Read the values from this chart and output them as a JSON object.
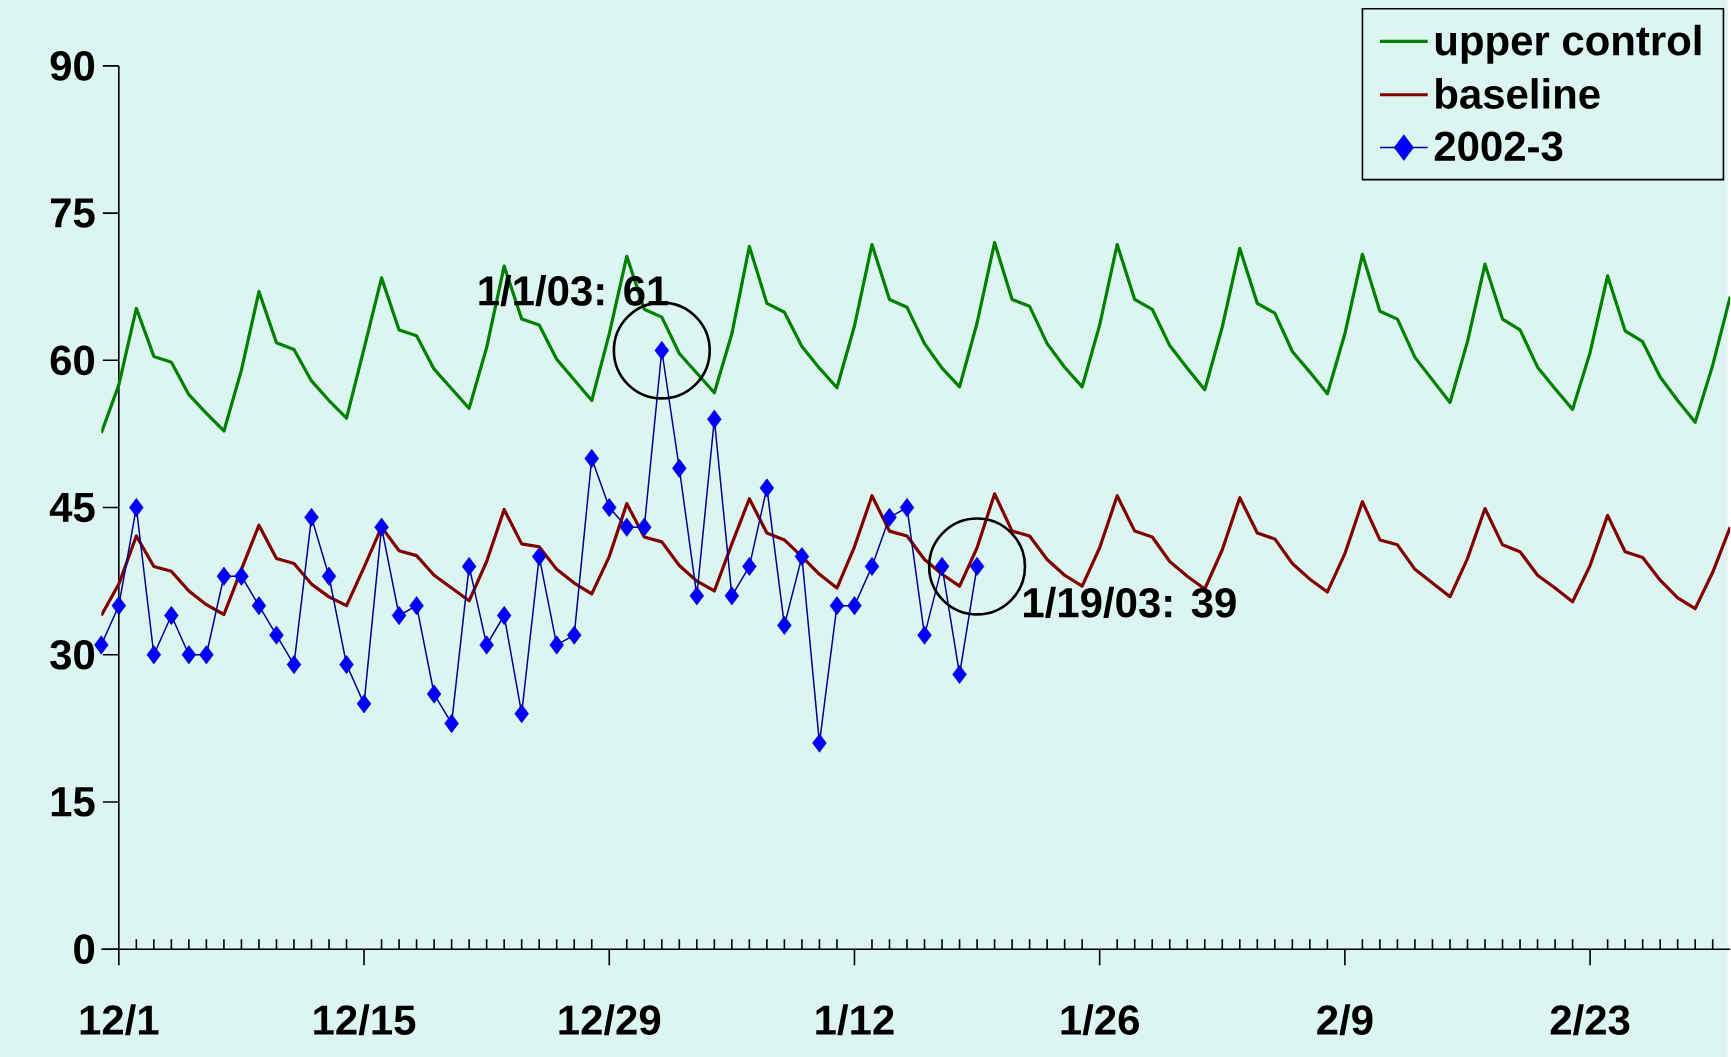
{
  "chart_data": {
    "type": "line",
    "x": [
      "2002-11-30",
      "2002-12-01",
      "2002-12-02",
      "2002-12-03",
      "2002-12-04",
      "2002-12-05",
      "2002-12-06",
      "2002-12-07",
      "2002-12-08",
      "2002-12-09",
      "2002-12-10",
      "2002-12-11",
      "2002-12-12",
      "2002-12-13",
      "2002-12-14",
      "2002-12-15",
      "2002-12-16",
      "2002-12-17",
      "2002-12-18",
      "2002-12-19",
      "2002-12-20",
      "2002-12-21",
      "2002-12-22",
      "2002-12-23",
      "2002-12-24",
      "2002-12-25",
      "2002-12-26",
      "2002-12-27",
      "2002-12-28",
      "2002-12-29",
      "2002-12-30",
      "2002-12-31",
      "2003-01-01",
      "2003-01-02",
      "2003-01-03",
      "2003-01-04",
      "2003-01-05",
      "2003-01-06",
      "2003-01-07",
      "2003-01-08",
      "2003-01-09",
      "2003-01-10",
      "2003-01-11",
      "2003-01-12",
      "2003-01-13",
      "2003-01-14",
      "2003-01-15",
      "2003-01-16",
      "2003-01-17",
      "2003-01-18",
      "2003-01-19",
      "2003-01-20",
      "2003-01-21",
      "2003-01-22",
      "2003-01-23",
      "2003-01-24",
      "2003-01-25",
      "2003-01-26",
      "2003-01-27",
      "2003-01-28",
      "2003-01-29",
      "2003-01-30",
      "2003-01-31",
      "2003-02-01",
      "2003-02-02",
      "2003-02-03",
      "2003-02-04",
      "2003-02-05",
      "2003-02-06",
      "2003-02-07",
      "2003-02-08",
      "2003-02-09",
      "2003-02-10",
      "2003-02-11",
      "2003-02-12",
      "2003-02-13",
      "2003-02-14",
      "2003-02-15",
      "2003-02-16",
      "2003-02-17",
      "2003-02-18",
      "2003-02-19",
      "2003-02-20",
      "2003-02-21",
      "2003-02-22",
      "2003-02-23",
      "2003-02-24",
      "2003-02-25",
      "2003-02-26",
      "2003-02-27",
      "2003-02-28",
      "2003-03-01",
      "2003-03-02",
      "2003-03-03"
    ],
    "series": [
      {
        "name": "upper control",
        "color": "#008000",
        "values": [
          52.6,
          57.5,
          65.3,
          60.4,
          59.8,
          56.5,
          54.6,
          52.8,
          59,
          67,
          61.8,
          61.1,
          57.9,
          55.9,
          54.1,
          61.2,
          68.4,
          63.1,
          62.5,
          59.1,
          57.1,
          55.1,
          61.3,
          69.6,
          64.2,
          63.6,
          60.1,
          58,
          55.9,
          62.7,
          70.6,
          65.2,
          64.4,
          60.7,
          58.7,
          56.7,
          62.7,
          71.6,
          65.8,
          64.9,
          61.4,
          59.2,
          57.2,
          63.5,
          71.8,
          66.2,
          65.4,
          61.7,
          59.2,
          57.3,
          63.8,
          72,
          66.2,
          65.5,
          61.7,
          59.3,
          57.3,
          63.6,
          71.8,
          66.2,
          65.2,
          61.5,
          59.2,
          57,
          63.4,
          71.4,
          65.8,
          64.8,
          60.9,
          58.8,
          56.6,
          62.7,
          70.8,
          65,
          64.2,
          60.3,
          58,
          55.7,
          61.9,
          69.8,
          64.2,
          63.1,
          59.3,
          57.1,
          55,
          60.8,
          68.6,
          63,
          61.9,
          58.3,
          55.9,
          53.7,
          59.5,
          66.5
        ]
      },
      {
        "name": "baseline",
        "color": "#800000",
        "values": [
          34,
          37.2,
          42.1,
          39,
          38.5,
          36.5,
          35.1,
          34.1,
          38.7,
          43.2,
          39.8,
          39.3,
          37.2,
          35.9,
          35,
          38.9,
          43,
          40.6,
          40.1,
          38.1,
          36.8,
          35.5,
          39.5,
          44.8,
          41.3,
          41,
          38.7,
          37.3,
          36.2,
          40,
          45.4,
          42,
          41.5,
          39.1,
          37.5,
          36.5,
          41.3,
          45.9,
          42.4,
          41.7,
          40,
          38.2,
          36.8,
          41,
          46.2,
          42.6,
          42.1,
          39.7,
          38.2,
          37,
          40.9,
          46.4,
          42.6,
          42.1,
          39.7,
          38.1,
          37,
          40.9,
          46.2,
          42.6,
          42,
          39.5,
          38,
          36.7,
          40.7,
          46,
          42.4,
          41.8,
          39.3,
          37.7,
          36.4,
          40.3,
          45.6,
          41.7,
          41.2,
          38.7,
          37.3,
          35.9,
          39.8,
          44.9,
          41.2,
          40.5,
          38.1,
          36.8,
          35.4,
          39.1,
          44.2,
          40.5,
          39.9,
          37.6,
          35.8,
          34.7,
          38.4,
          43
        ]
      },
      {
        "name": "2002-3",
        "color": "#0000ff",
        "marker": "diamond",
        "values": [
          31,
          35,
          45,
          30,
          34,
          30,
          30,
          38,
          38,
          35,
          32,
          29,
          44,
          38,
          29,
          25,
          43,
          34,
          35,
          26,
          23,
          39,
          31,
          34,
          24,
          40,
          31,
          32,
          50,
          45,
          43,
          43,
          61,
          49,
          36,
          54,
          36,
          39,
          47,
          33,
          40,
          21,
          35,
          35,
          39,
          44,
          45,
          32,
          39,
          28,
          39,
          null,
          null,
          null,
          null,
          null,
          null,
          null,
          null,
          null,
          null,
          null,
          null,
          null,
          null,
          null,
          null,
          null,
          null,
          null,
          null,
          null,
          null,
          null,
          null,
          null,
          null,
          null,
          null,
          null,
          null,
          null,
          null,
          null,
          null,
          null,
          null,
          null,
          null,
          null,
          null,
          null,
          null,
          null
        ]
      }
    ],
    "xlim": [
      "2002-11-30",
      "2003-03-03"
    ],
    "ylim": [
      0,
      90
    ],
    "xticks": [
      {
        "value": "2002-12-01",
        "label": "12/1"
      },
      {
        "value": "2002-12-02",
        "label": null
      },
      {
        "value": "2002-12-03",
        "label": null
      },
      {
        "value": "2002-12-04",
        "label": null
      },
      {
        "value": "2002-12-05",
        "label": null
      },
      {
        "value": "2002-12-06",
        "label": null
      },
      {
        "value": "2002-12-07",
        "label": null
      },
      {
        "value": "2002-12-08",
        "label": null
      },
      {
        "value": "2002-12-09",
        "label": null
      },
      {
        "value": "2002-12-10",
        "label": null
      },
      {
        "value": "2002-12-11",
        "label": null
      },
      {
        "value": "2002-12-12",
        "label": null
      },
      {
        "value": "2002-12-13",
        "label": null
      },
      {
        "value": "2002-12-14",
        "label": null
      },
      {
        "value": "2002-12-15",
        "label": "12/15"
      },
      {
        "value": "2002-12-16",
        "label": null
      },
      {
        "value": "2002-12-17",
        "label": null
      },
      {
        "value": "2002-12-18",
        "label": null
      },
      {
        "value": "2002-12-19",
        "label": null
      },
      {
        "value": "2002-12-20",
        "label": null
      },
      {
        "value": "2002-12-21",
        "label": null
      },
      {
        "value": "2002-12-22",
        "label": null
      },
      {
        "value": "2002-12-23",
        "label": null
      },
      {
        "value": "2002-12-24",
        "label": null
      },
      {
        "value": "2002-12-25",
        "label": null
      },
      {
        "value": "2002-12-26",
        "label": null
      },
      {
        "value": "2002-12-27",
        "label": null
      },
      {
        "value": "2002-12-28",
        "label": null
      },
      {
        "value": "2002-12-29",
        "label": "12/29"
      },
      {
        "value": "2002-12-30",
        "label": null
      },
      {
        "value": "2002-12-31",
        "label": null
      },
      {
        "value": "2003-01-01",
        "label": null
      },
      {
        "value": "2003-01-02",
        "label": null
      },
      {
        "value": "2003-01-03",
        "label": null
      },
      {
        "value": "2003-01-04",
        "label": null
      },
      {
        "value": "2003-01-05",
        "label": null
      },
      {
        "value": "2003-01-06",
        "label": null
      },
      {
        "value": "2003-01-07",
        "label": null
      },
      {
        "value": "2003-01-08",
        "label": null
      },
      {
        "value": "2003-01-09",
        "label": null
      },
      {
        "value": "2003-01-10",
        "label": null
      },
      {
        "value": "2003-01-11",
        "label": null
      },
      {
        "value": "2003-01-12",
        "label": "1/12"
      },
      {
        "value": "2003-01-13",
        "label": null
      },
      {
        "value": "2003-01-14",
        "label": null
      },
      {
        "value": "2003-01-15",
        "label": null
      },
      {
        "value": "2003-01-16",
        "label": null
      },
      {
        "value": "2003-01-17",
        "label": null
      },
      {
        "value": "2003-01-18",
        "label": null
      },
      {
        "value": "2003-01-19",
        "label": null
      },
      {
        "value": "2003-01-20",
        "label": null
      },
      {
        "value": "2003-01-21",
        "label": null
      },
      {
        "value": "2003-01-22",
        "label": null
      },
      {
        "value": "2003-01-23",
        "label": null
      },
      {
        "value": "2003-01-24",
        "label": null
      },
      {
        "value": "2003-01-25",
        "label": null
      },
      {
        "value": "2003-01-26",
        "label": "1/26"
      },
      {
        "value": "2003-01-27",
        "label": null
      },
      {
        "value": "2003-01-28",
        "label": null
      },
      {
        "value": "2003-01-29",
        "label": null
      },
      {
        "value": "2003-01-30",
        "label": null
      },
      {
        "value": "2003-01-31",
        "label": null
      },
      {
        "value": "2003-02-01",
        "label": null
      },
      {
        "value": "2003-02-02",
        "label": null
      },
      {
        "value": "2003-02-03",
        "label": null
      },
      {
        "value": "2003-02-04",
        "label": null
      },
      {
        "value": "2003-02-05",
        "label": null
      },
      {
        "value": "2003-02-06",
        "label": null
      },
      {
        "value": "2003-02-07",
        "label": null
      },
      {
        "value": "2003-02-08",
        "label": null
      },
      {
        "value": "2003-02-09",
        "label": "2/9"
      },
      {
        "value": "2003-02-10",
        "label": null
      },
      {
        "value": "2003-02-11",
        "label": null
      },
      {
        "value": "2003-02-12",
        "label": null
      },
      {
        "value": "2003-02-13",
        "label": null
      },
      {
        "value": "2003-02-14",
        "label": null
      },
      {
        "value": "2003-02-15",
        "label": null
      },
      {
        "value": "2003-02-16",
        "label": null
      },
      {
        "value": "2003-02-17",
        "label": null
      },
      {
        "value": "2003-02-18",
        "label": null
      },
      {
        "value": "2003-02-19",
        "label": null
      },
      {
        "value": "2003-02-20",
        "label": null
      },
      {
        "value": "2003-02-21",
        "label": null
      },
      {
        "value": "2003-02-22",
        "label": null
      },
      {
        "value": "2003-02-23",
        "label": "2/23"
      },
      {
        "value": "2003-02-24",
        "label": null
      },
      {
        "value": "2003-02-25",
        "label": null
      },
      {
        "value": "2003-02-26",
        "label": null
      },
      {
        "value": "2003-02-27",
        "label": null
      },
      {
        "value": "2003-02-28",
        "label": null
      },
      {
        "value": "2003-03-01",
        "label": null
      },
      {
        "value": "2003-03-02",
        "label": null
      }
    ],
    "yticks": [
      0,
      15,
      30,
      45,
      60,
      75,
      90
    ],
    "legend": "top right",
    "annotations": [
      {
        "text": "1/1/03: 61",
        "x": "2003-01-01",
        "y": 61
      },
      {
        "text": "1/19/03: 39",
        "x": "2003-01-19",
        "y": 39
      }
    ]
  }
}
